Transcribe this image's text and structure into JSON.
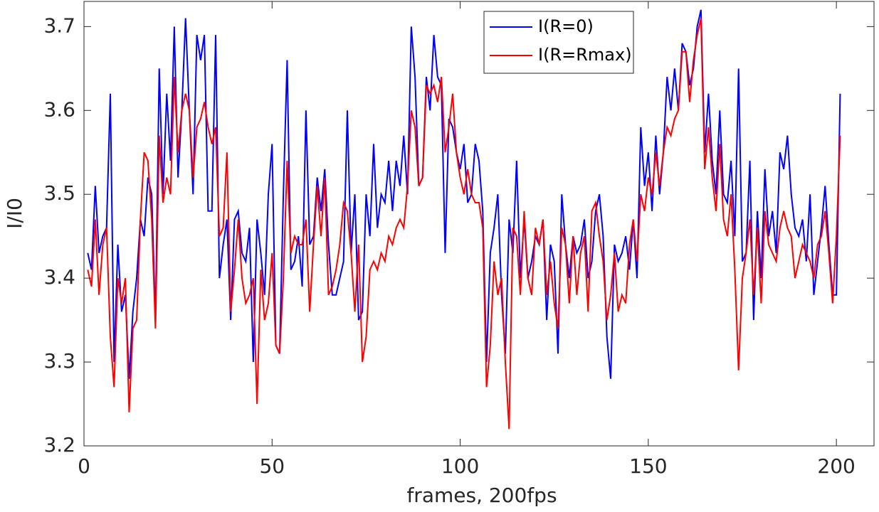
{
  "chart_data": {
    "type": "line",
    "xlabel": "frames, 200fps",
    "ylabel": "I/I0",
    "xlim": [
      0,
      210
    ],
    "ylim": [
      3.2,
      3.73
    ],
    "xticks": [
      0,
      50,
      100,
      150,
      200
    ],
    "yticks": [
      3.2,
      3.3,
      3.4,
      3.5,
      3.6,
      3.7
    ],
    "legend": "top",
    "x": [
      1,
      2,
      3,
      4,
      5,
      6,
      7,
      8,
      9,
      10,
      11,
      12,
      13,
      14,
      15,
      16,
      17,
      18,
      19,
      20,
      21,
      22,
      23,
      24,
      25,
      26,
      27,
      28,
      29,
      30,
      31,
      32,
      33,
      34,
      35,
      36,
      37,
      38,
      39,
      40,
      41,
      42,
      43,
      44,
      45,
      46,
      47,
      48,
      49,
      50,
      51,
      52,
      53,
      54,
      55,
      56,
      57,
      58,
      59,
      60,
      61,
      62,
      63,
      64,
      65,
      66,
      67,
      68,
      69,
      70,
      71,
      72,
      73,
      74,
      75,
      76,
      77,
      78,
      79,
      80,
      81,
      82,
      83,
      84,
      85,
      86,
      87,
      88,
      89,
      90,
      91,
      92,
      93,
      94,
      95,
      96,
      97,
      98,
      99,
      100,
      101,
      102,
      103,
      104,
      105,
      106,
      107,
      108,
      109,
      110,
      111,
      112,
      113,
      114,
      115,
      116,
      117,
      118,
      119,
      120,
      121,
      122,
      123,
      124,
      125,
      126,
      127,
      128,
      129,
      130,
      131,
      132,
      133,
      134,
      135,
      136,
      137,
      138,
      139,
      140,
      141,
      142,
      143,
      144,
      145,
      146,
      147,
      148,
      149,
      150,
      151,
      152,
      153,
      154,
      155,
      156,
      157,
      158,
      159,
      160,
      161,
      162,
      163,
      164,
      165,
      166,
      167,
      168,
      169,
      170,
      171,
      172,
      173,
      174,
      175,
      176,
      177,
      178,
      179,
      180,
      181,
      182,
      183,
      184,
      185,
      186,
      187,
      188,
      189,
      190,
      191,
      192,
      193,
      194,
      195,
      196,
      197,
      198,
      199,
      200,
      201
    ],
    "series": [
      {
        "name": "I(R=0)",
        "color": "#0000ff",
        "values": [
          3.43,
          3.41,
          3.51,
          3.43,
          3.45,
          3.46,
          3.62,
          3.3,
          3.44,
          3.36,
          3.38,
          3.28,
          3.36,
          3.4,
          3.47,
          3.45,
          3.52,
          3.5,
          3.35,
          3.65,
          3.5,
          3.62,
          3.54,
          3.7,
          3.52,
          3.6,
          3.71,
          3.6,
          3.5,
          3.69,
          3.66,
          3.69,
          3.48,
          3.48,
          3.69,
          3.4,
          3.44,
          3.47,
          3.35,
          3.47,
          3.48,
          3.43,
          3.42,
          3.46,
          3.3,
          3.47,
          3.43,
          3.38,
          3.5,
          3.56,
          3.32,
          3.31,
          3.5,
          3.66,
          3.41,
          3.42,
          3.45,
          3.39,
          3.6,
          3.44,
          3.45,
          3.52,
          3.48,
          3.53,
          3.44,
          3.38,
          3.38,
          3.4,
          3.42,
          3.6,
          3.43,
          3.5,
          3.35,
          3.36,
          3.5,
          3.45,
          3.56,
          3.46,
          3.5,
          3.49,
          3.54,
          3.48,
          3.54,
          3.51,
          3.57,
          3.5,
          3.7,
          3.64,
          3.51,
          3.52,
          3.64,
          3.6,
          3.69,
          3.64,
          3.63,
          3.43,
          3.59,
          3.58,
          3.55,
          3.53,
          3.56,
          3.49,
          3.5,
          3.56,
          3.54,
          3.48,
          3.3,
          3.43,
          3.46,
          3.5,
          3.38,
          3.31,
          3.47,
          3.43,
          3.54,
          3.4,
          3.47,
          3.4,
          3.42,
          3.45,
          3.44,
          3.47,
          3.35,
          3.44,
          3.42,
          3.31,
          3.5,
          3.44,
          3.4,
          3.45,
          3.43,
          3.44,
          3.47,
          3.4,
          3.42,
          3.48,
          3.5,
          3.45,
          3.33,
          3.28,
          3.44,
          3.42,
          3.43,
          3.45,
          3.41,
          3.47,
          3.4,
          3.58,
          3.51,
          3.55,
          3.48,
          3.57,
          3.5,
          3.55,
          3.64,
          3.6,
          3.65,
          3.6,
          3.68,
          3.67,
          3.63,
          3.65,
          3.7,
          3.72,
          3.55,
          3.62,
          3.54,
          3.5,
          3.6,
          3.5,
          3.49,
          3.54,
          3.45,
          3.65,
          3.42,
          3.43,
          3.54,
          3.35,
          3.48,
          3.4,
          3.53,
          3.45,
          3.48,
          3.43,
          3.55,
          3.53,
          3.57,
          3.5,
          3.46,
          3.45,
          3.47,
          3.42,
          3.5,
          3.38,
          3.42,
          3.46,
          3.51,
          3.44,
          3.38,
          3.38,
          3.62
        ]
      },
      {
        "name": "I(R=Rmax)",
        "color": "#ff0000",
        "values": [
          3.41,
          3.39,
          3.47,
          3.38,
          3.44,
          3.46,
          3.33,
          3.27,
          3.4,
          3.37,
          3.4,
          3.24,
          3.34,
          3.35,
          3.47,
          3.55,
          3.54,
          3.47,
          3.34,
          3.57,
          3.49,
          3.52,
          3.5,
          3.64,
          3.55,
          3.6,
          3.62,
          3.6,
          3.52,
          3.58,
          3.59,
          3.61,
          3.58,
          3.56,
          3.58,
          3.45,
          3.46,
          3.55,
          3.36,
          3.41,
          3.47,
          3.4,
          3.37,
          3.38,
          3.4,
          3.25,
          3.41,
          3.35,
          3.37,
          3.43,
          3.32,
          3.31,
          3.4,
          3.54,
          3.43,
          3.45,
          3.44,
          3.44,
          3.47,
          3.36,
          3.44,
          3.51,
          3.45,
          3.52,
          3.38,
          3.39,
          3.41,
          3.44,
          3.49,
          3.48,
          3.43,
          3.36,
          3.44,
          3.3,
          3.33,
          3.41,
          3.42,
          3.41,
          3.43,
          3.42,
          3.45,
          3.44,
          3.46,
          3.47,
          3.46,
          3.51,
          3.6,
          3.58,
          3.51,
          3.52,
          3.63,
          3.62,
          3.63,
          3.61,
          3.64,
          3.55,
          3.58,
          3.62,
          3.55,
          3.52,
          3.5,
          3.53,
          3.5,
          3.49,
          3.49,
          3.46,
          3.27,
          3.32,
          3.42,
          3.38,
          3.4,
          3.3,
          3.22,
          3.46,
          3.45,
          3.38,
          3.48,
          3.4,
          3.38,
          3.46,
          3.44,
          3.47,
          3.38,
          3.42,
          3.37,
          3.34,
          3.46,
          3.44,
          3.37,
          3.45,
          3.38,
          3.43,
          3.45,
          3.36,
          3.48,
          3.49,
          3.45,
          3.42,
          3.35,
          3.38,
          3.43,
          3.36,
          3.38,
          3.37,
          3.44,
          3.47,
          3.42,
          3.5,
          3.48,
          3.52,
          3.5,
          3.55,
          3.51,
          3.55,
          3.58,
          3.57,
          3.59,
          3.6,
          3.67,
          3.67,
          3.61,
          3.66,
          3.69,
          3.71,
          3.53,
          3.58,
          3.52,
          3.48,
          3.56,
          3.47,
          3.45,
          3.5,
          3.41,
          3.29,
          3.4,
          3.43,
          3.47,
          3.38,
          3.46,
          3.37,
          3.48,
          3.44,
          3.43,
          3.42,
          3.46,
          3.48,
          3.46,
          3.45,
          3.4,
          3.42,
          3.44,
          3.43,
          3.42,
          3.4,
          3.44,
          3.45,
          3.48,
          3.43,
          3.37,
          3.45,
          3.57
        ]
      }
    ]
  }
}
